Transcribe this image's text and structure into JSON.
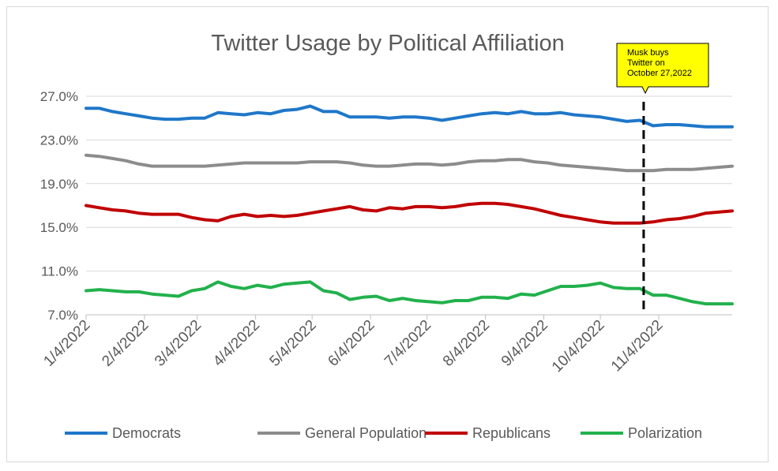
{
  "chart_data": {
    "type": "line",
    "title": "Twitter Usage by Political Affiliation",
    "xlabel": "",
    "ylabel": "",
    "y_ticks": [
      "7.0%",
      "11.0%",
      "15.0%",
      "19.0%",
      "23.0%",
      "27.0%"
    ],
    "ylim": [
      7.0,
      27.0
    ],
    "x_ticks": [
      "1/4/2022",
      "2/4/2022",
      "3/4/2022",
      "4/4/2022",
      "5/4/2022",
      "6/4/2022",
      "7/4/2022",
      "8/4/2022",
      "9/4/2022",
      "10/4/2022",
      "11/4/2022"
    ],
    "x": [
      "2022-01-04",
      "2022-01-11",
      "2022-01-18",
      "2022-01-25",
      "2022-02-01",
      "2022-02-08",
      "2022-02-15",
      "2022-02-22",
      "2022-03-01",
      "2022-03-08",
      "2022-03-15",
      "2022-03-22",
      "2022-03-29",
      "2022-04-05",
      "2022-04-12",
      "2022-04-19",
      "2022-04-26",
      "2022-05-03",
      "2022-05-10",
      "2022-05-17",
      "2022-05-24",
      "2022-05-31",
      "2022-06-07",
      "2022-06-14",
      "2022-06-21",
      "2022-06-28",
      "2022-07-05",
      "2022-07-12",
      "2022-07-19",
      "2022-07-26",
      "2022-08-02",
      "2022-08-09",
      "2022-08-16",
      "2022-08-23",
      "2022-08-30",
      "2022-09-06",
      "2022-09-13",
      "2022-09-20",
      "2022-09-27",
      "2022-10-04",
      "2022-10-11",
      "2022-10-18",
      "2022-10-25",
      "2022-11-01",
      "2022-11-08",
      "2022-11-15",
      "2022-11-22",
      "2022-11-29",
      "2022-12-06",
      "2022-12-13"
    ],
    "series": [
      {
        "name": "Democrats",
        "color": "#1f77c9",
        "values": [
          25.9,
          25.9,
          25.6,
          25.4,
          25.2,
          25.0,
          24.9,
          24.9,
          25.0,
          25.0,
          25.5,
          25.4,
          25.3,
          25.5,
          25.4,
          25.7,
          25.8,
          26.1,
          25.6,
          25.6,
          25.1,
          25.1,
          25.1,
          25.0,
          25.1,
          25.1,
          25.0,
          24.8,
          25.0,
          25.2,
          25.4,
          25.5,
          25.4,
          25.6,
          25.4,
          25.4,
          25.5,
          25.3,
          25.2,
          25.1,
          24.9,
          24.7,
          24.8,
          24.3,
          24.4,
          24.4,
          24.3,
          24.2,
          24.2,
          24.2
        ]
      },
      {
        "name": "General Population",
        "color": "#8c8c8c",
        "values": [
          21.6,
          21.5,
          21.3,
          21.1,
          20.8,
          20.6,
          20.6,
          20.6,
          20.6,
          20.6,
          20.7,
          20.8,
          20.9,
          20.9,
          20.9,
          20.9,
          20.9,
          21.0,
          21.0,
          21.0,
          20.9,
          20.7,
          20.6,
          20.6,
          20.7,
          20.8,
          20.8,
          20.7,
          20.8,
          21.0,
          21.1,
          21.1,
          21.2,
          21.2,
          21.0,
          20.9,
          20.7,
          20.6,
          20.5,
          20.4,
          20.3,
          20.2,
          20.2,
          20.2,
          20.3,
          20.3,
          20.3,
          20.4,
          20.5,
          20.6
        ]
      },
      {
        "name": "Republicans",
        "color": "#c00000",
        "values": [
          17.0,
          16.8,
          16.6,
          16.5,
          16.3,
          16.2,
          16.2,
          16.2,
          15.9,
          15.7,
          15.6,
          16.0,
          16.2,
          16.0,
          16.1,
          16.0,
          16.1,
          16.3,
          16.5,
          16.7,
          16.9,
          16.6,
          16.5,
          16.8,
          16.7,
          16.9,
          16.9,
          16.8,
          16.9,
          17.1,
          17.2,
          17.2,
          17.1,
          16.9,
          16.7,
          16.4,
          16.1,
          15.9,
          15.7,
          15.5,
          15.4,
          15.4,
          15.4,
          15.5,
          15.7,
          15.8,
          16.0,
          16.3,
          16.4,
          16.5
        ]
      },
      {
        "name": "Polarization",
        "color": "#22b14c",
        "values": [
          9.2,
          9.3,
          9.2,
          9.1,
          9.1,
          8.9,
          8.8,
          8.7,
          9.2,
          9.4,
          10.0,
          9.6,
          9.4,
          9.7,
          9.5,
          9.8,
          9.9,
          10.0,
          9.2,
          9.0,
          8.4,
          8.6,
          8.7,
          8.3,
          8.5,
          8.3,
          8.2,
          8.1,
          8.3,
          8.3,
          8.6,
          8.6,
          8.5,
          8.9,
          8.8,
          9.2,
          9.6,
          9.6,
          9.7,
          9.9,
          9.5,
          9.4,
          9.4,
          8.8,
          8.8,
          8.5,
          8.2,
          8.0,
          8.0,
          8.0
        ]
      }
    ],
    "annotation": {
      "lines": [
        "Musk buys",
        "Twitter on",
        "October 27,2022"
      ],
      "box_color": "#ffff00",
      "marker_date": "2022-10-27",
      "marker_style": "dashed vertical line"
    },
    "grid": "horizontal",
    "legend_position": "bottom"
  }
}
